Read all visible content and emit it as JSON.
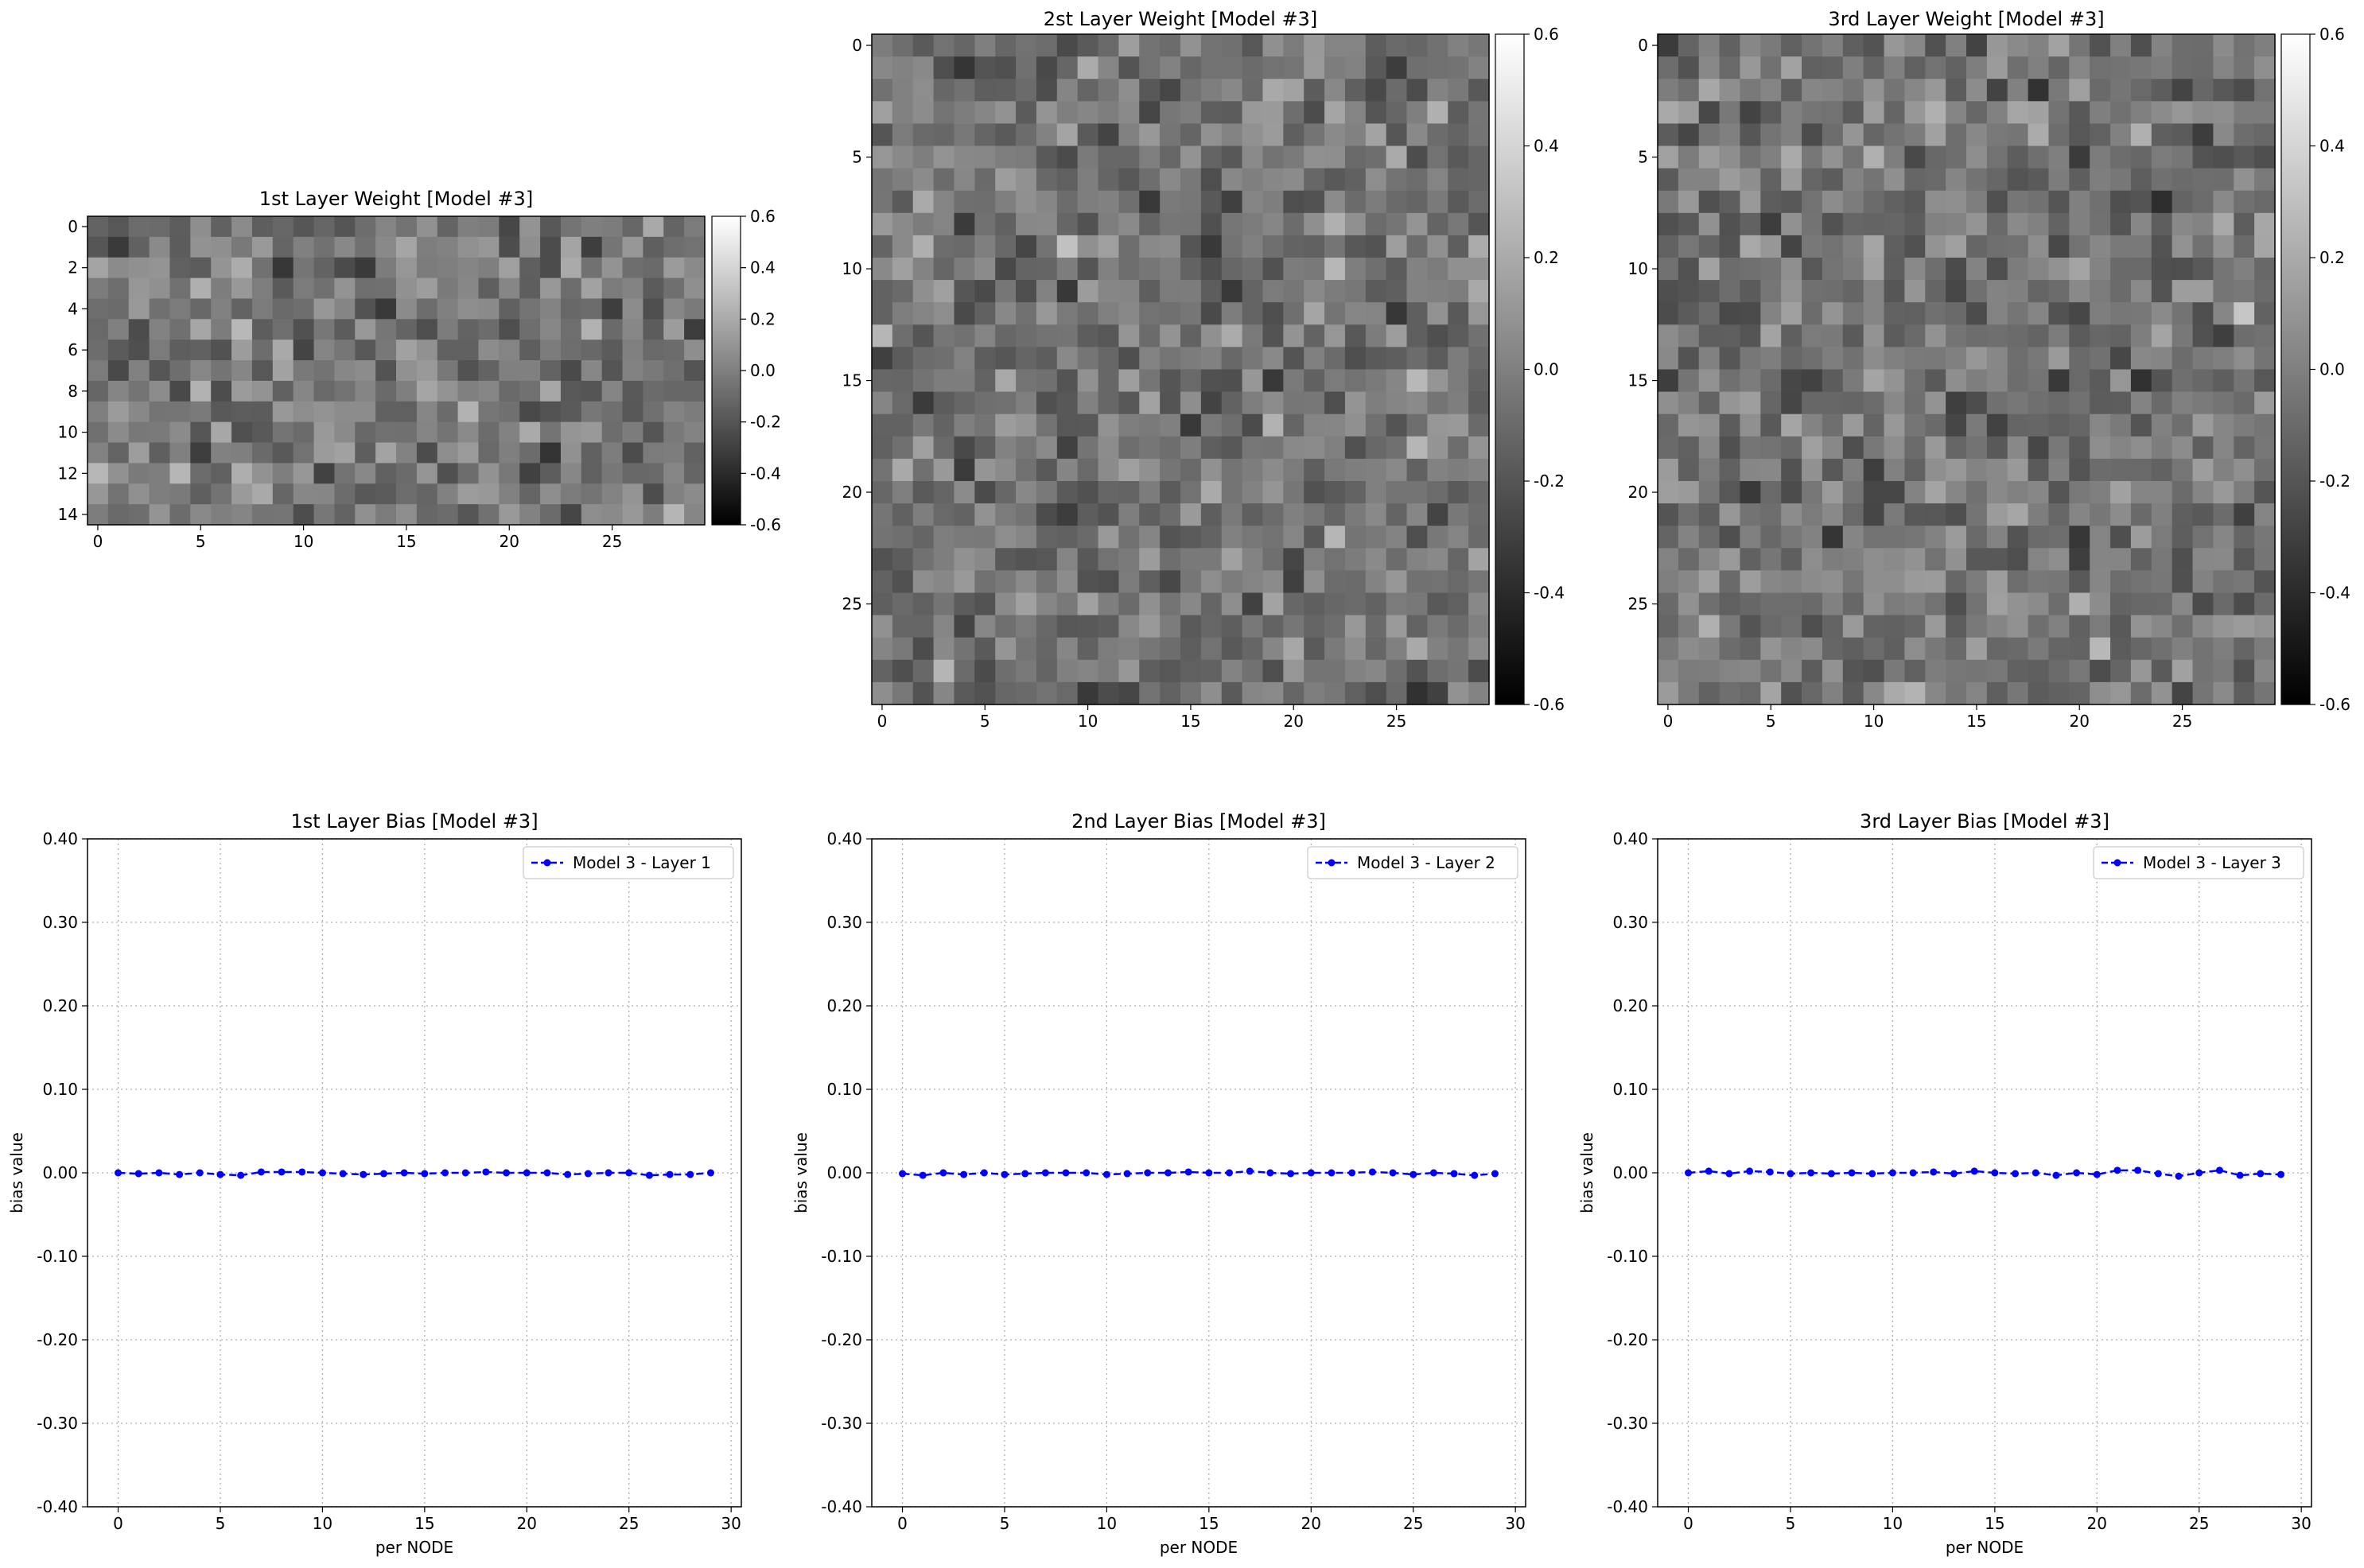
{
  "colors": {
    "series_line": "#0000ff",
    "grid": "#b0b0b0",
    "axes": "#000000",
    "colormap": "gray"
  },
  "chart_data": [
    {
      "type": "heatmap",
      "title": "1st Layer Weight [Model #3]",
      "rows": 15,
      "cols": 30,
      "colormap": "gray",
      "vmin": -0.6,
      "vmax": 0.6,
      "seed": 11,
      "values_note": "",
      "xticks": [
        0,
        5,
        10,
        15,
        20,
        25
      ],
      "yticks": [
        0,
        2,
        4,
        6,
        8,
        10,
        12,
        14
      ],
      "colorbar_ticks": [
        "0.6",
        "0.4",
        "0.2",
        "0.0",
        "-0.2",
        "-0.4",
        "-0.6"
      ]
    },
    {
      "type": "heatmap",
      "title": "2st Layer Weight [Model #3]",
      "rows": 30,
      "cols": 30,
      "colormap": "gray",
      "vmin": -0.6,
      "vmax": 0.6,
      "seed": 23,
      "xticks": [
        0,
        5,
        10,
        15,
        20,
        25
      ],
      "yticks": [
        0,
        5,
        10,
        15,
        20,
        25
      ],
      "colorbar_ticks": [
        "0.6",
        "0.4",
        "0.2",
        "0.0",
        "-0.2",
        "-0.4",
        "-0.6"
      ]
    },
    {
      "type": "heatmap",
      "title": "3rd Layer Weight [Model #3]",
      "rows": 30,
      "cols": 30,
      "colormap": "gray",
      "vmin": -0.6,
      "vmax": 0.6,
      "seed": 37,
      "xticks": [
        0,
        5,
        10,
        15,
        20,
        25
      ],
      "yticks": [
        0,
        5,
        10,
        15,
        20,
        25
      ],
      "colorbar_ticks": [
        "0.6",
        "0.4",
        "0.2",
        "0.0",
        "-0.2",
        "-0.4",
        "-0.6"
      ]
    },
    {
      "type": "line",
      "title": "1st Layer Bias [Model #3]",
      "xlabel": "per NODE",
      "ylabel": "bias value",
      "xlim": [
        -1.5,
        30.5
      ],
      "ylim": [
        -0.4,
        0.4
      ],
      "xticks": [
        0,
        5,
        10,
        15,
        20,
        25,
        30
      ],
      "yticks": [
        "0.40",
        "0.30",
        "0.20",
        "0.10",
        "0.00",
        "-0.10",
        "-0.20",
        "-0.30",
        "-0.40"
      ],
      "grid": true,
      "legend_position": "upper right",
      "series": [
        {
          "name": "Model 3 - Layer 1",
          "style": "dashed with dot markers",
          "x": [
            0,
            1,
            2,
            3,
            4,
            5,
            6,
            7,
            8,
            9,
            10,
            11,
            12,
            13,
            14,
            15,
            16,
            17,
            18,
            19,
            20,
            21,
            22,
            23,
            24,
            25,
            26,
            27,
            28,
            29
          ],
          "values": [
            0.0,
            -0.001,
            0.0,
            -0.002,
            0.0,
            -0.002,
            -0.003,
            0.001,
            0.001,
            0.001,
            0.0,
            -0.001,
            -0.002,
            -0.001,
            0.0,
            -0.001,
            0.0,
            0.0,
            0.001,
            0.0,
            0.0,
            0.0,
            -0.002,
            -0.001,
            0.0,
            0.0,
            -0.003,
            -0.002,
            -0.002,
            0.0
          ]
        }
      ]
    },
    {
      "type": "line",
      "title": "2nd Layer Bias [Model #3]",
      "xlabel": "per NODE",
      "ylabel": "bias value",
      "xlim": [
        -1.5,
        30.5
      ],
      "ylim": [
        -0.4,
        0.4
      ],
      "xticks": [
        0,
        5,
        10,
        15,
        20,
        25,
        30
      ],
      "yticks": [
        "0.40",
        "0.30",
        "0.20",
        "0.10",
        "0.00",
        "-0.10",
        "-0.20",
        "-0.30",
        "-0.40"
      ],
      "grid": true,
      "legend_position": "upper right",
      "series": [
        {
          "name": "Model 3 - Layer 2",
          "style": "dashed with dot markers",
          "x": [
            0,
            1,
            2,
            3,
            4,
            5,
            6,
            7,
            8,
            9,
            10,
            11,
            12,
            13,
            14,
            15,
            16,
            17,
            18,
            19,
            20,
            21,
            22,
            23,
            24,
            25,
            26,
            27,
            28,
            29
          ],
          "values": [
            -0.001,
            -0.003,
            0.0,
            -0.002,
            0.0,
            -0.002,
            -0.001,
            0.0,
            0.0,
            0.0,
            -0.002,
            -0.001,
            0.0,
            0.0,
            0.001,
            0.0,
            0.0,
            0.002,
            0.0,
            -0.001,
            0.0,
            0.0,
            0.0,
            0.001,
            0.0,
            -0.002,
            0.0,
            -0.001,
            -0.003,
            -0.001
          ]
        }
      ]
    },
    {
      "type": "line",
      "title": "3rd Layer Bias [Model #3]",
      "xlabel": "per NODE",
      "ylabel": "bias value",
      "xlim": [
        -1.5,
        30.5
      ],
      "ylim": [
        -0.4,
        0.4
      ],
      "xticks": [
        0,
        5,
        10,
        15,
        20,
        25,
        30
      ],
      "yticks": [
        "0.40",
        "0.30",
        "0.20",
        "0.10",
        "0.00",
        "-0.10",
        "-0.20",
        "-0.30",
        "-0.40"
      ],
      "grid": true,
      "legend_position": "upper right",
      "series": [
        {
          "name": "Model 3 - Layer 3",
          "style": "dashed with dot markers",
          "x": [
            0,
            1,
            2,
            3,
            4,
            5,
            6,
            7,
            8,
            9,
            10,
            11,
            12,
            13,
            14,
            15,
            16,
            17,
            18,
            19,
            20,
            21,
            22,
            23,
            24,
            25,
            26,
            27,
            28,
            29
          ],
          "values": [
            0.0,
            0.002,
            -0.001,
            0.002,
            0.001,
            -0.001,
            0.0,
            -0.001,
            0.0,
            -0.001,
            0.0,
            0.0,
            0.001,
            -0.001,
            0.002,
            0.0,
            -0.001,
            0.0,
            -0.003,
            0.0,
            -0.002,
            0.003,
            0.003,
            -0.001,
            -0.004,
            0.0,
            0.003,
            -0.003,
            -0.001,
            -0.002
          ]
        }
      ]
    }
  ]
}
